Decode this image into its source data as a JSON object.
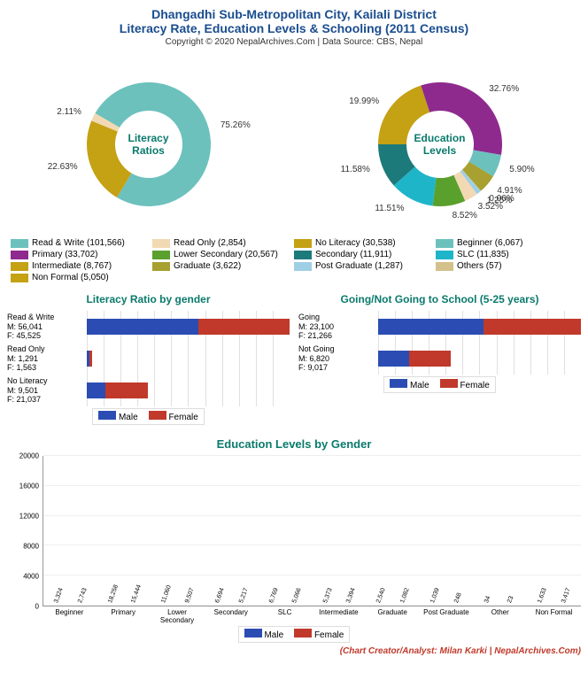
{
  "header": {
    "title1": "Dhangadhi Sub-Metropolitan City, Kailali District",
    "title2": "Literacy Rate, Education Levels & Schooling (2011 Census)",
    "copyright": "Copyright © 2020 NepalArchives.Com | Data Source: CBS, Nepal",
    "title_color": "#1a4d8f",
    "copyright_color": "#333333"
  },
  "colors": {
    "teal": "#6cc1bd",
    "gold": "#c5a114",
    "pale": "#f2d9b3",
    "purple": "#8e2a8e",
    "green": "#5aa02c",
    "darkteal": "#1d7a7a",
    "cyan": "#1fb5c9",
    "ltblue": "#9fcfe5",
    "tan": "#d4c08a",
    "olive": "#a8a030",
    "male": "#2b4db3",
    "female": "#c0392b"
  },
  "donut1": {
    "center_label": "Literacy\nRatios",
    "center_color": "#0a7a6c",
    "slices": [
      {
        "pct": 75.26,
        "color": "#6cc1bd",
        "label": "75.26%"
      },
      {
        "pct": 22.63,
        "color": "#c5a114",
        "label": "22.63%"
      },
      {
        "pct": 2.11,
        "color": "#f2d9b3",
        "label": "2.11%"
      }
    ]
  },
  "donut2": {
    "center_label": "Education\nLevels",
    "center_color": "#0a7a6c",
    "slices": [
      {
        "pct": 19.99,
        "color": "#c5a114",
        "label": "19.99%"
      },
      {
        "pct": 32.76,
        "color": "#8e2a8e",
        "label": "32.76%"
      },
      {
        "pct": 5.9,
        "color": "#6cc1bd",
        "label": "5.90%"
      },
      {
        "pct": 4.91,
        "color": "#a8a030",
        "label": "4.91%"
      },
      {
        "pct": 0.06,
        "color": "#d4c08a",
        "label": "0.06%"
      },
      {
        "pct": 1.25,
        "color": "#9fcfe5",
        "label": "1.25%"
      },
      {
        "pct": 3.52,
        "color": "#f2d9b3",
        "label": "3.52%"
      },
      {
        "pct": 8.52,
        "color": "#5aa02c",
        "label": "8.52%"
      },
      {
        "pct": 11.51,
        "color": "#1fb5c9",
        "label": "11.51%"
      },
      {
        "pct": 11.58,
        "color": "#1d7a7a",
        "label": "11.58%"
      }
    ]
  },
  "legend": [
    {
      "color": "#6cc1bd",
      "label": "Read & Write (101,566)"
    },
    {
      "color": "#f2d9b3",
      "label": "Read Only (2,854)"
    },
    {
      "color": "#c5a114",
      "label": "No Literacy (30,538)"
    },
    {
      "color": "#6cc1bd",
      "label": "Beginner (6,067)"
    },
    {
      "color": "#8e2a8e",
      "label": "Primary (33,702)"
    },
    {
      "color": "#5aa02c",
      "label": "Lower Secondary (20,567)"
    },
    {
      "color": "#1d7a7a",
      "label": "Secondary (11,911)"
    },
    {
      "color": "#1fb5c9",
      "label": "SLC (11,835)"
    },
    {
      "color": "#c5a114",
      "label": "Intermediate (8,767)"
    },
    {
      "color": "#a8a030",
      "label": "Graduate (3,622)"
    },
    {
      "color": "#9fcfe5",
      "label": "Post Graduate (1,287)"
    },
    {
      "color": "#d4c08a",
      "label": "Others (57)"
    },
    {
      "color": "#c5a114",
      "label": "Non Formal (5,050)"
    }
  ],
  "hbar1": {
    "title": "Literacy Ratio by gender",
    "title_color": "#0a7a6c",
    "max": 101566,
    "rows": [
      {
        "name": "Read & Write",
        "m": 56041,
        "f": 45525
      },
      {
        "name": "Read Only",
        "m": 1291,
        "f": 1563
      },
      {
        "name": "No Literacy",
        "m": 9501,
        "f": 21037
      }
    ]
  },
  "hbar2": {
    "title": "Going/Not Going to School (5-25 years)",
    "title_color": "#0a7a6c",
    "max": 44366,
    "rows": [
      {
        "name": "Going",
        "m": 23100,
        "f": 21266
      },
      {
        "name": "Not Going",
        "m": 6820,
        "f": 9017
      }
    ]
  },
  "gender_legend": {
    "male": "Male",
    "female": "Female"
  },
  "vbar": {
    "title": "Education Levels by Gender",
    "title_color": "#0a7a6c",
    "ymax": 20000,
    "ystep": 4000,
    "categories": [
      "Beginner",
      "Primary",
      "Lower Secondary",
      "Secondary",
      "SLC",
      "Intermediate",
      "Graduate",
      "Post Graduate",
      "Other",
      "Non Formal"
    ],
    "data": [
      {
        "m": 3324,
        "f": 2743
      },
      {
        "m": 18258,
        "f": 15444
      },
      {
        "m": 11060,
        "f": 9507
      },
      {
        "m": 6694,
        "f": 5217
      },
      {
        "m": 6769,
        "f": 5066
      },
      {
        "m": 5373,
        "f": 3394
      },
      {
        "m": 2540,
        "f": 1082
      },
      {
        "m": 1039,
        "f": 248
      },
      {
        "m": 34,
        "f": 23
      },
      {
        "m": 1633,
        "f": 3417
      }
    ]
  },
  "credit": {
    "text": "(Chart Creator/Analyst: Milan Karki | NepalArchives.Com)",
    "color": "#c0392b"
  }
}
